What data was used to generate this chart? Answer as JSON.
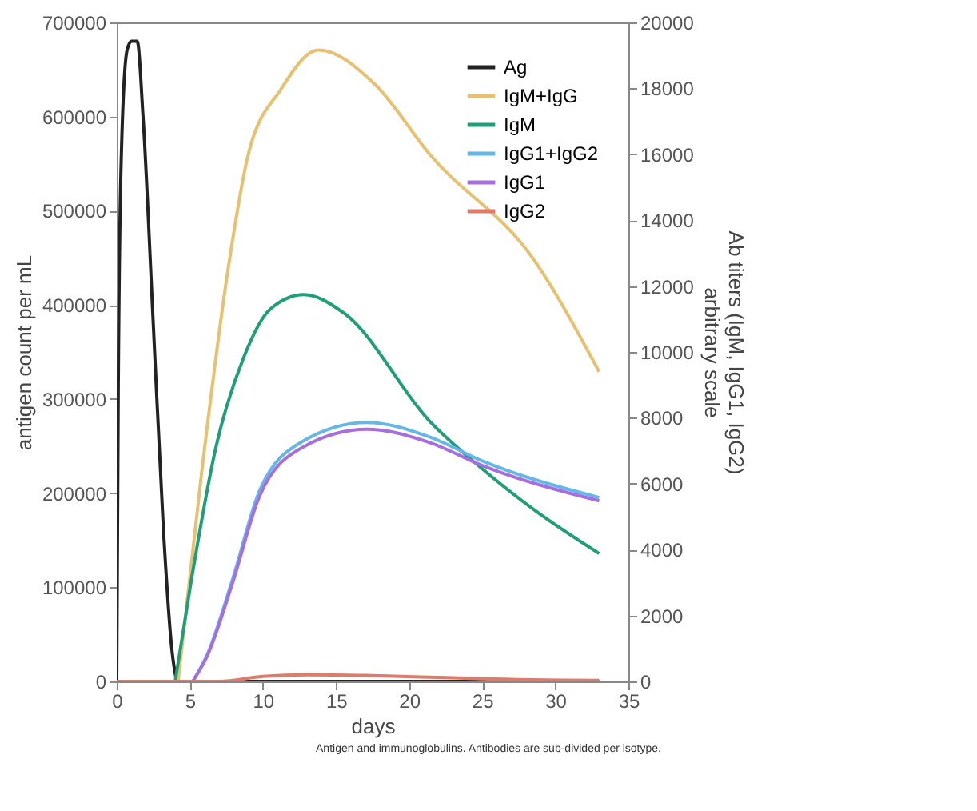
{
  "chart_data": {
    "type": "line",
    "xlabel": "days",
    "ylabel": "antigen count per mL",
    "y2label": "Ab titers (IgM, IgG1, IgG2)\narbitrary scale",
    "annotations": [
      "Antigen and immunoglobulins. Antibodies are sub-divided per isotype."
    ],
    "xlim": [
      0,
      35
    ],
    "xticks": [
      0,
      5,
      10,
      15,
      20,
      25,
      30,
      35
    ],
    "ylim": [
      0,
      700000
    ],
    "yticks": [
      0,
      100000,
      200000,
      300000,
      400000,
      500000,
      600000,
      700000
    ],
    "y2lim": [
      0,
      20000
    ],
    "y2ticks": [
      0,
      2000,
      4000,
      6000,
      8000,
      10000,
      12000,
      14000,
      16000,
      18000,
      20000
    ],
    "grid": false,
    "legend": "top right",
    "marker": "none",
    "line_style": "solid",
    "series": [
      {
        "name": "Ag",
        "color": "#222222",
        "x": [
          0,
          0.1,
          0.3,
          0.7,
          1,
          1.4,
          1.8,
          2.5,
          3.2,
          3.8,
          4.2,
          10,
          20,
          33
        ],
        "values": [
          0,
          300000,
          550000,
          670000,
          680000,
          680000,
          600000,
          380000,
          160000,
          30000,
          0,
          0,
          0,
          0
        ]
      },
      {
        "name": "IgM+IgG",
        "color": "#e8c170",
        "axis": "y2",
        "x": [
          4.2,
          5.8,
          7.6,
          9,
          11.2,
          13.8,
          17.7,
          21.4,
          28.6,
          33
        ],
        "values": [
          0,
          6300,
          12460,
          16000,
          17950,
          19160,
          18100,
          16000,
          12760,
          9400
        ]
      },
      {
        "name": "IgM",
        "color": "#1f9e78",
        "axis": "y2",
        "x": [
          4,
          5.1,
          6.8,
          8.7,
          10.5,
          12.8,
          15.6,
          21.4,
          25,
          28.6,
          33
        ],
        "values": [
          0,
          3060,
          7130,
          9850,
          11300,
          11740,
          11160,
          7900,
          6450,
          5190,
          3880
        ]
      },
      {
        "name": "IgG1+IgG2",
        "color": "#64b8e8",
        "axis": "y2",
        "x": [
          5.2,
          6.2,
          7.9,
          9.8,
          12.7,
          17.1,
          21.4,
          25,
          33
        ],
        "values": [
          0,
          820,
          3060,
          5820,
          7280,
          7860,
          7420,
          6690,
          5580
        ]
      },
      {
        "name": "IgG1",
        "color": "#a66ee0",
        "axis": "y2",
        "x": [
          5.2,
          6.2,
          7.9,
          9.8,
          12.7,
          17.1,
          21.4,
          25,
          33
        ],
        "values": [
          0,
          780,
          2950,
          5650,
          7100,
          7650,
          7250,
          6550,
          5480
        ]
      },
      {
        "name": "IgG2",
        "color": "#e07a6a",
        "axis": "y2",
        "x": [
          0,
          7,
          10,
          13,
          17,
          22,
          25,
          33
        ],
        "values": [
          0,
          0,
          150,
          200,
          180,
          120,
          80,
          30
        ]
      }
    ]
  }
}
